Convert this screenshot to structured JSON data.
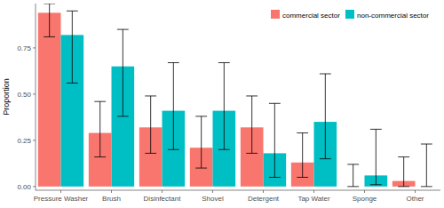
{
  "chart_data": {
    "type": "bar",
    "y_label": "Proportion",
    "categories": [
      "Pressure Washer",
      "Brush",
      "Disinfectant",
      "Shovel",
      "Detergent",
      "Tap Water",
      "Sponge",
      "Other"
    ],
    "series": [
      {
        "name": "commercial sector",
        "color": "#f8766d",
        "values": [
          0.94,
          0.29,
          0.32,
          0.21,
          0.32,
          0.13,
          0.0,
          0.03
        ],
        "lower": [
          0.81,
          0.16,
          0.18,
          0.1,
          0.18,
          0.05,
          0.0,
          0.0
        ],
        "upper": [
          0.99,
          0.46,
          0.49,
          0.38,
          0.49,
          0.29,
          0.12,
          0.16
        ]
      },
      {
        "name": "non-commercial sector",
        "color": "#00bfc4",
        "values": [
          0.82,
          0.65,
          0.41,
          0.41,
          0.18,
          0.35,
          0.06,
          0.0
        ],
        "lower": [
          0.56,
          0.38,
          0.2,
          0.2,
          0.05,
          0.15,
          0.01,
          0.0
        ],
        "upper": [
          0.95,
          0.85,
          0.67,
          0.67,
          0.45,
          0.61,
          0.31,
          0.23
        ]
      }
    ],
    "ylim": [
      -0.02,
      0.99
    ],
    "yticks": [
      {
        "value": 0,
        "label": "0.00"
      },
      {
        "value": 0.25,
        "label": "0.25"
      },
      {
        "value": 0.5,
        "label": "0.50"
      },
      {
        "value": 0.75,
        "label": "0.75"
      }
    ],
    "grid": false,
    "legend": "top-right"
  }
}
